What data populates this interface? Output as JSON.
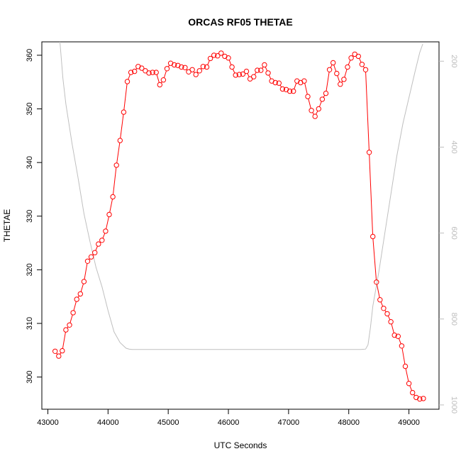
{
  "chart_data": {
    "type": "line",
    "title": "ORCAS RF05 THETAE",
    "xlabel": "UTC Seconds",
    "ylabel": "THETAE",
    "xlim": [
      42900,
      49500
    ],
    "ylim": [
      294,
      362.5
    ],
    "x_ticks": [
      43000,
      44000,
      45000,
      46000,
      47000,
      48000,
      49000
    ],
    "y_ticks": [
      300,
      310,
      320,
      330,
      340,
      350,
      360
    ],
    "y2_lim": [
      1010,
      155
    ],
    "y2_ticks": [
      200,
      400,
      600,
      800,
      1000
    ],
    "grid": false,
    "series": [
      {
        "color": "#ff0000",
        "style": "points-and-lines",
        "x": [
          43120,
          43180,
          43240,
          43300,
          43360,
          43420,
          43480,
          43540,
          43600,
          43660,
          43720,
          43780,
          43840,
          43900,
          43960,
          44020,
          44080,
          44140,
          44200,
          44260,
          44320,
          44380,
          44440,
          44500,
          44560,
          44620,
          44680,
          44740,
          44800,
          44860,
          44920,
          44980,
          45040,
          45100,
          45160,
          45220,
          45280,
          45340,
          45400,
          45460,
          45520,
          45580,
          45640,
          45700,
          45760,
          45820,
          45880,
          45940,
          46000,
          46060,
          46120,
          46180,
          46240,
          46300,
          46360,
          46420,
          46480,
          46540,
          46600,
          46660,
          46720,
          46780,
          46840,
          46900,
          46960,
          47020,
          47080,
          47140,
          47200,
          47260,
          47320,
          47380,
          47440,
          47500,
          47560,
          47620,
          47680,
          47740,
          47800,
          47860,
          47920,
          47980,
          48040,
          48100,
          48160,
          48220,
          48280,
          48340,
          48400,
          48460,
          48520,
          48580,
          48640,
          48700,
          48760,
          48820,
          48880,
          48940,
          49000,
          49060,
          49120,
          49180,
          49240
        ],
        "y": [
          304.8,
          303.9,
          304.9,
          308.8,
          309.7,
          312.0,
          314.5,
          315.5,
          317.8,
          321.6,
          322.4,
          323.2,
          324.8,
          325.5,
          327.2,
          330.3,
          333.6,
          339.5,
          344.1,
          349.4,
          355.1,
          356.8,
          357.0,
          357.9,
          357.6,
          357.1,
          356.7,
          356.8,
          356.8,
          354.5,
          355.4,
          357.5,
          358.5,
          358.2,
          358.1,
          357.8,
          357.7,
          356.9,
          357.3,
          356.4,
          357.1,
          357.9,
          357.8,
          359.4,
          360.0,
          359.9,
          360.4,
          359.8,
          359.5,
          357.8,
          356.3,
          356.4,
          356.5,
          357.0,
          355.6,
          356.0,
          357.2,
          357.2,
          358.2,
          356.7,
          355.2,
          354.9,
          354.8,
          353.7,
          353.6,
          353.3,
          353.3,
          355.2,
          354.9,
          355.2,
          352.3,
          349.7,
          348.6,
          350.0,
          351.8,
          352.9,
          357.3,
          358.6,
          356.6,
          354.6,
          355.5,
          357.8,
          359.5,
          360.2,
          359.8,
          358.3,
          357.3,
          341.9,
          326.2,
          317.7,
          314.4,
          312.8,
          311.8,
          310.3,
          307.8,
          307.6,
          305.8,
          302.0,
          298.8,
          297.1,
          296.2,
          295.9,
          296.0
        ]
      },
      {
        "color": "#bfbfbf",
        "style": "line",
        "axis": "right",
        "x": [
          43200,
          43250,
          43300,
          43400,
          43500,
          43600,
          43700,
          43800,
          43900,
          44000,
          44100,
          44200,
          44300,
          44350,
          44400,
          44600,
          45000,
          46000,
          47000,
          48000,
          48200,
          48280,
          48320,
          48360,
          48400,
          48500,
          48600,
          48700,
          48800,
          48900,
          49000,
          49100,
          49180,
          49230
        ],
        "y": [
          155,
          240,
          300,
          390,
          470,
          555,
          620,
          680,
          725,
          780,
          830,
          855,
          868,
          870,
          871,
          871,
          871,
          871,
          871,
          871,
          871,
          870,
          860,
          820,
          770,
          690,
          600,
          510,
          420,
          345,
          285,
          225,
          180,
          160
        ]
      }
    ]
  }
}
